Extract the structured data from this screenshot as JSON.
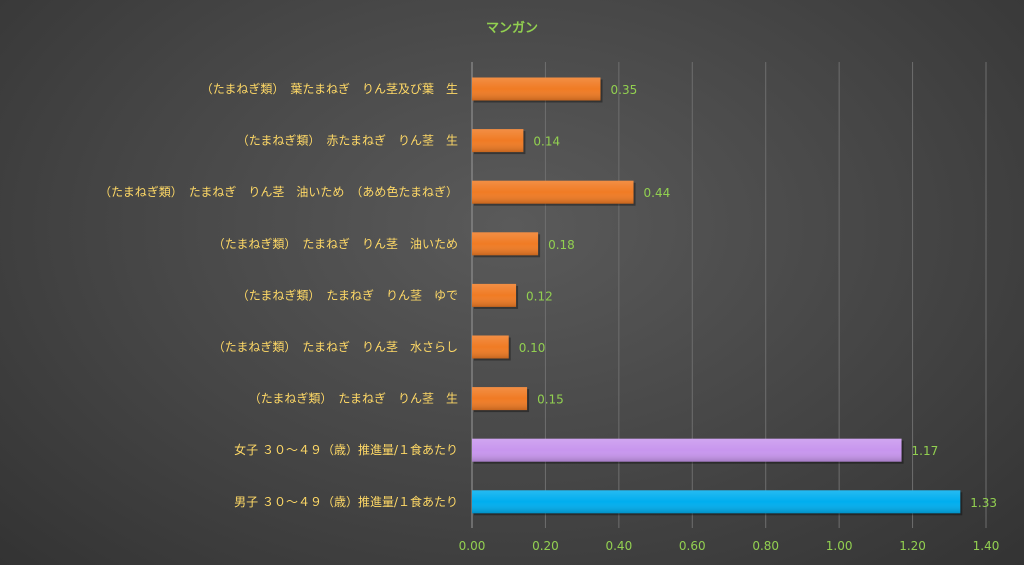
{
  "chart_data": {
    "type": "bar",
    "orientation": "horizontal",
    "title": "マンガン",
    "categories": [
      "（たまねぎ類）　葉たまねぎ　りん茎及び葉　生",
      "（たまねぎ類）　赤たまねぎ　りん茎　生",
      "（たまねぎ類）　たまねぎ　りん茎　油いため　（あめ色たまねぎ）",
      "（たまねぎ類）　たまねぎ　りん茎　油いため",
      "（たまねぎ類）　たまねぎ　りん茎　ゆで",
      "（たまねぎ類）　たまねぎ　りん茎　水さらし",
      "（たまねぎ類）　たまねぎ　りん茎　生",
      "女子 ３０～４９（歳）推進量/１食あたり",
      "男子 ３０～４９（歳）推進量/１食あたり"
    ],
    "values": [
      0.35,
      0.14,
      0.44,
      0.18,
      0.12,
      0.1,
      0.15,
      1.17,
      1.33
    ],
    "value_labels": [
      "0.35",
      "0.14",
      "0.44",
      "0.18",
      "0.12",
      "0.10",
      "0.15",
      "1.17",
      "1.33"
    ],
    "bar_colors": [
      "#f07b24",
      "#f07b24",
      "#f07b24",
      "#f07b24",
      "#f07b24",
      "#f07b24",
      "#f07b24",
      "#c896ee",
      "#00aeef"
    ],
    "xlim": [
      0,
      1.4
    ],
    "ticks": [
      "0.00",
      "0.20",
      "0.40",
      "0.60",
      "0.80",
      "1.00",
      "1.20",
      "1.40"
    ],
    "grid": true,
    "legend": "none"
  }
}
